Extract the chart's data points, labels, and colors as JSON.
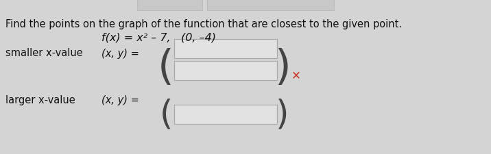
{
  "background_color": "#d4d4d4",
  "title_text": "Find the points on the graph of the function that are closest to the given point.",
  "title_fontsize": 10.5,
  "function_text": "f(x) = x² – 7,   (0, –4)",
  "function_fontsize": 11.5,
  "smaller_label": "smaller x-value",
  "smaller_xy_label": "(x, y) =",
  "larger_label": "larger x-value",
  "larger_xy_label": "(x, y) =",
  "label_fontsize": 10.5,
  "box_facecolor": "#e2e2e2",
  "box_edgecolor": "#aaaaaa",
  "paren_color": "#444444",
  "x_mark_color": "#cc3322",
  "top_bar_color": "#c8c8c8",
  "top_bar_edgecolor": "#bbbbbb"
}
